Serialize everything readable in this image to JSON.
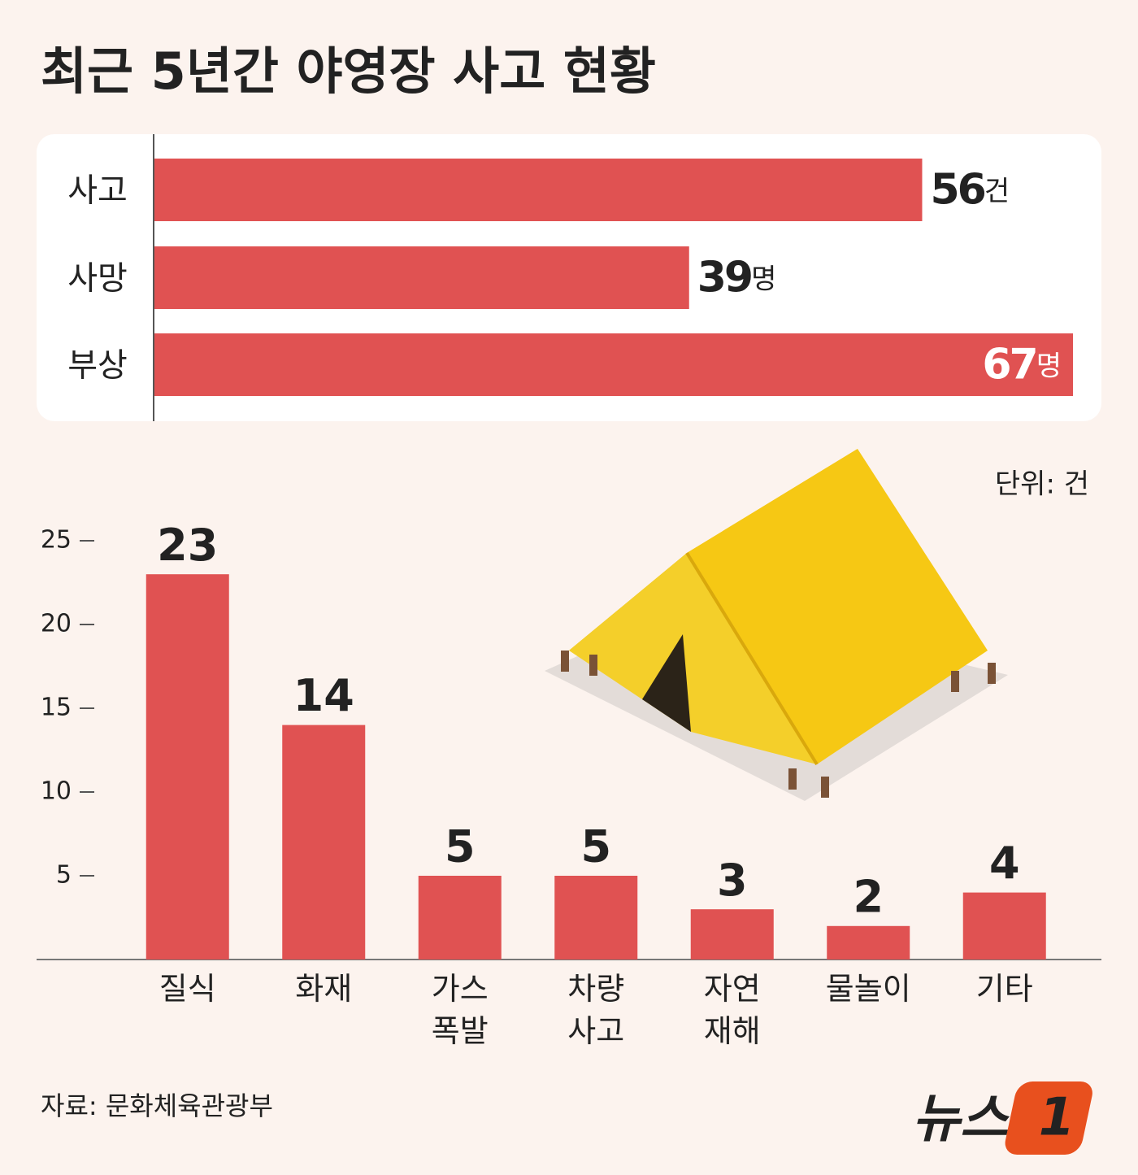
{
  "title": "최근 5년간 야영장 사고 현황",
  "unit": "단위: 건",
  "source": "자료: 문화체육관광부",
  "logo": {
    "text": "뉴스",
    "mark": "1"
  },
  "chart_data": [
    {
      "type": "hbar",
      "categories": [
        "사고",
        "사망",
        "부상"
      ],
      "values": [
        56,
        39,
        67
      ],
      "value_labels": [
        "56건",
        "39명",
        "67명"
      ],
      "color": "#e05252",
      "xlim": [
        0,
        67
      ]
    },
    {
      "type": "bar",
      "categories": [
        "질식",
        "화재",
        "가스 폭발",
        "차량 사고",
        "자연 재해",
        "물놀이",
        "기타"
      ],
      "values": [
        23,
        14,
        5,
        5,
        3,
        2,
        4
      ],
      "color": "#e05252",
      "ylim": [
        0,
        25
      ],
      "yticks": [
        5,
        10,
        15,
        20,
        25
      ]
    }
  ]
}
